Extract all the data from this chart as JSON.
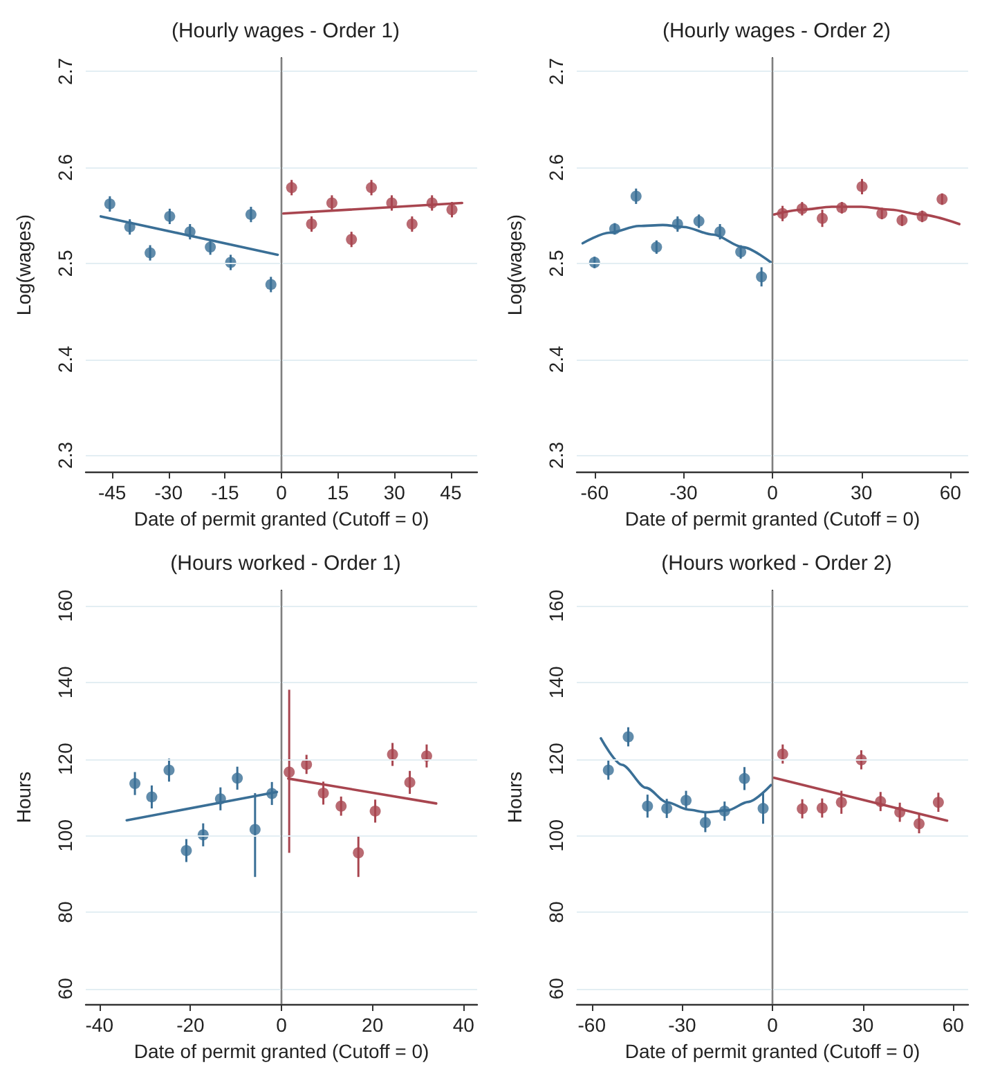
{
  "chart_data": [
    {
      "type": "scatter",
      "title": "(Hourly wages - Order 1)",
      "xlabel": "Date of permit granted (Cutoff = 0)",
      "ylabel": "Log(wages)",
      "xlim": [
        -52,
        52
      ],
      "xticks": [
        -45,
        -30,
        -15,
        0,
        15,
        30,
        45
      ],
      "ylim": [
        2.283,
        2.714
      ],
      "yticks": [
        2.3,
        2.4,
        2.5,
        2.6,
        2.7
      ],
      "grid": "y",
      "marker": "circle",
      "ref_lines": [
        {
          "axis": "x",
          "value": 0,
          "color": "#7f7f7f"
        }
      ],
      "series": [
        {
          "color": "#3a6f96",
          "x": [
            -45.6,
            -40.3,
            -34.9,
            -29.7,
            -24.3,
            -18.9,
            -13.5,
            -8.1,
            -2.8
          ],
          "values": [
            2.562,
            2.538,
            2.511,
            2.549,
            2.533,
            2.517,
            2.501,
            2.551,
            2.478
          ],
          "errors": [
            0.008,
            0.008,
            0.008,
            0.008,
            0.008,
            0.008,
            0.008,
            0.008,
            0.008
          ]
        },
        {
          "color": "#a8454f",
          "x": [
            2.7,
            8.0,
            13.4,
            18.6,
            23.9,
            29.3,
            34.7,
            40.0,
            45.3
          ],
          "values": [
            2.579,
            2.541,
            2.563,
            2.525,
            2.579,
            2.563,
            2.541,
            2.563,
            2.556
          ],
          "errors": [
            0.008,
            0.008,
            0.008,
            0.008,
            0.008,
            0.008,
            0.008,
            0.008,
            0.008
          ]
        },
        {
          "type": "line",
          "color": "#3a6f96",
          "marker": "none",
          "x": [
            -48,
            -1
          ],
          "values": [
            2.549,
            2.509
          ]
        },
        {
          "type": "line",
          "color": "#a8454f",
          "marker": "none",
          "x": [
            0.5,
            48
          ],
          "values": [
            2.552,
            2.563
          ]
        }
      ]
    },
    {
      "type": "scatter",
      "title": "(Hourly wages - Order 2)",
      "xlabel": "Date of permit granted (Cutoff = 0)",
      "ylabel": "Log(wages)",
      "xlim": [
        -66,
        66
      ],
      "xticks": [
        -60,
        -30,
        0,
        30,
        60
      ],
      "ylim": [
        2.283,
        2.714
      ],
      "yticks": [
        2.3,
        2.4,
        2.5,
        2.6,
        2.7
      ],
      "grid": "y",
      "marker": "circle",
      "ref_lines": [
        {
          "axis": "x",
          "value": 0,
          "color": "#7f7f7f"
        }
      ],
      "series": [
        {
          "color": "#3a6f96",
          "x": [
            -60,
            -53.2,
            -46,
            -39.1,
            -32,
            -24.8,
            -17.7,
            -10.7,
            -3.7
          ],
          "values": [
            2.501,
            2.536,
            2.57,
            2.517,
            2.541,
            2.544,
            2.533,
            2.512,
            2.486
          ],
          "errors": [
            0.006,
            0.006,
            0.008,
            0.007,
            0.008,
            0.007,
            0.008,
            0.007,
            0.01
          ]
        },
        {
          "color": "#a8454f",
          "x": [
            3.4,
            10,
            16.8,
            23.4,
            30.2,
            36.9,
            43.7,
            50.5,
            57.2
          ],
          "values": [
            2.552,
            2.557,
            2.547,
            2.558,
            2.58,
            2.552,
            2.545,
            2.549,
            2.567
          ],
          "errors": [
            0.008,
            0.007,
            0.009,
            0.006,
            0.008,
            0.006,
            0.006,
            0.006,
            0.006
          ]
        },
        {
          "type": "line",
          "color": "#3a6f96",
          "marker": "none",
          "x": [
            -64,
            -55,
            -45,
            -37,
            -30,
            -20,
            -10,
            -0.5
          ],
          "values": [
            2.521,
            2.532,
            2.539,
            2.54,
            2.538,
            2.53,
            2.517,
            2.501
          ]
        },
        {
          "type": "line",
          "color": "#a8454f",
          "marker": "none",
          "x": [
            0.5,
            10,
            20,
            30,
            40,
            50,
            63
          ],
          "values": [
            2.551,
            2.556,
            2.559,
            2.559,
            2.556,
            2.551,
            2.541
          ]
        }
      ]
    },
    {
      "type": "scatter",
      "title": "(Hours worked - Order 1)",
      "xlabel": "Date of permit granted (Cutoff = 0)",
      "ylabel": "Hours",
      "xlim": [
        -43,
        43
      ],
      "xticks": [
        -40,
        -20,
        0,
        20,
        40
      ],
      "ylim": [
        56,
        164
      ],
      "yticks": [
        60,
        80,
        100,
        120,
        140,
        160
      ],
      "grid": "y",
      "marker": "circle",
      "ref_lines": [
        {
          "axis": "x",
          "value": 0,
          "color": "#7f7f7f"
        }
      ],
      "series": [
        {
          "color": "#3a6f96",
          "x": [
            -32.2,
            -28.5,
            -24.7,
            -20.9,
            -17.2,
            -13.4,
            -9.7,
            -5.8,
            -2.1
          ],
          "values": [
            113.6,
            110.1,
            117.1,
            96.1,
            100.2,
            109.6,
            115.0,
            101.6,
            111.0
          ],
          "errors": [
            3,
            3,
            3,
            3,
            3,
            3,
            3,
            [
              89.2,
              111.1
            ],
            3
          ]
        },
        {
          "color": "#a8454f",
          "x": [
            1.7,
            5.5,
            9.2,
            13.1,
            16.9,
            20.6,
            24.4,
            28.2,
            31.9
          ],
          "values": [
            116.6,
            118.6,
            111.1,
            107.7,
            95.5,
            106.4,
            121.2,
            113.9,
            120.8
          ],
          "errors": [
            [
              95.5,
              138.1
            ],
            2.5,
            3,
            2.5,
            [
              89.2,
              99.8
            ],
            3,
            3,
            3,
            3
          ]
        },
        {
          "type": "line",
          "color": "#3a6f96",
          "marker": "none",
          "x": [
            -34,
            -1
          ],
          "values": [
            104.0,
            111.4
          ]
        },
        {
          "type": "line",
          "color": "#a8454f",
          "marker": "none",
          "x": [
            1.5,
            34
          ],
          "values": [
            114.9,
            108.4
          ]
        }
      ]
    },
    {
      "type": "scatter",
      "title": "(Hours worked - Order 2)",
      "xlabel": "Date of permit granted (Cutoff = 0)",
      "ylabel": "Hours",
      "xlim": [
        -65,
        65
      ],
      "xticks": [
        -60,
        -30,
        0,
        30,
        60
      ],
      "ylim": [
        56,
        164
      ],
      "yticks": [
        60,
        80,
        100,
        120,
        140,
        160
      ],
      "grid": "y",
      "marker": "circle",
      "ref_lines": [
        {
          "axis": "x",
          "value": 0,
          "color": "#7f7f7f"
        }
      ],
      "series": [
        {
          "color": "#3a6f96",
          "x": [
            -54.5,
            -47.9,
            -41.5,
            -35.1,
            -28.7,
            -22.3,
            -15.9,
            -9.3,
            -3.1
          ],
          "values": [
            117.1,
            125.8,
            107.7,
            107.1,
            109.2,
            103.4,
            106.4,
            114.9,
            107.1
          ],
          "errors": [
            2.5,
            2.5,
            3,
            2.5,
            2.5,
            2.5,
            2.5,
            3,
            4
          ]
        },
        {
          "color": "#a8454f",
          "x": [
            3.4,
            9.9,
            16.5,
            22.9,
            29.5,
            35.9,
            42.3,
            48.7,
            55.1
          ],
          "values": [
            121.3,
            107.0,
            107.2,
            108.7,
            119.8,
            108.9,
            106.1,
            103.1,
            108.7
          ],
          "errors": [
            2.5,
            2.5,
            2.5,
            3,
            2.5,
            2.5,
            2.5,
            2.5,
            2.5
          ]
        },
        {
          "type": "line",
          "color": "#3a6f96",
          "marker": "none",
          "x": [
            -57,
            -50,
            -42,
            -35,
            -28,
            -22,
            -15,
            -8,
            -0.5
          ],
          "values": [
            125.4,
            118.5,
            112.5,
            108.7,
            106.8,
            106.1,
            106.6,
            108.8,
            113.2
          ]
        },
        {
          "type": "line",
          "color": "#a8454f",
          "marker": "none",
          "x": [
            0.5,
            58
          ],
          "values": [
            115.1,
            103.9
          ]
        }
      ]
    }
  ]
}
